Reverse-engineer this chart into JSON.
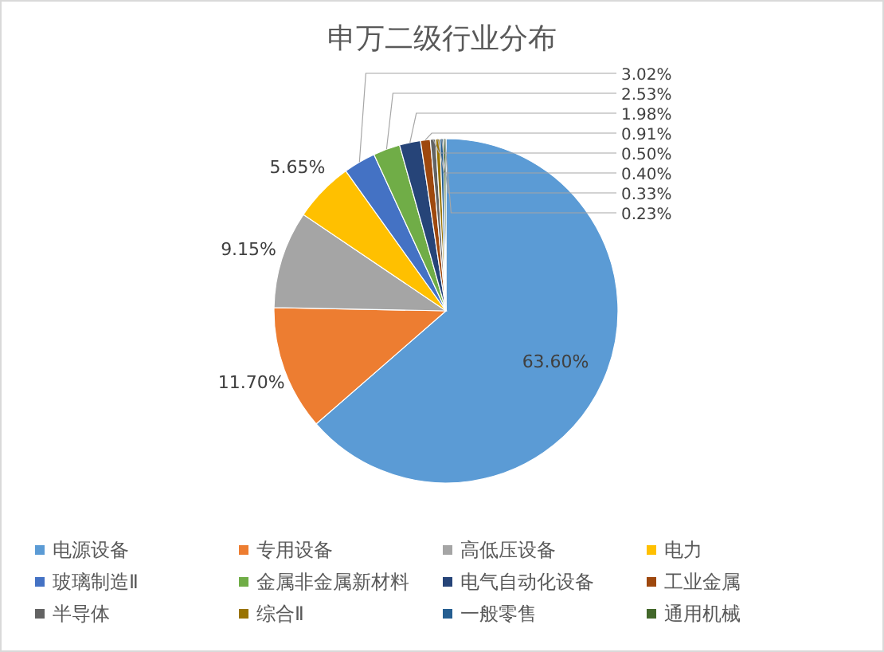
{
  "chart_data": {
    "type": "pie",
    "title": "申万二级行业分布",
    "categories": [
      "电源设备",
      "专用设备",
      "高低压设备",
      "电力",
      "玻璃制造Ⅱ",
      "金属非金属新材料",
      "电气自动化设备",
      "工业金属",
      "半导体",
      "综合Ⅱ",
      "一般零售",
      "通用机械"
    ],
    "values": [
      63.6,
      11.7,
      9.15,
      5.65,
      3.02,
      2.53,
      1.98,
      0.91,
      0.5,
      0.4,
      0.33,
      0.23
    ],
    "colors": [
      "#5b9bd5",
      "#ed7d31",
      "#a5a5a5",
      "#ffc000",
      "#4472c4",
      "#70ad47",
      "#264478",
      "#9e480e",
      "#636363",
      "#997300",
      "#255e91",
      "#43682b"
    ],
    "value_labels": [
      "63.60%",
      "11.70%",
      "9.15%",
      "5.65%",
      "3.02%",
      "2.53%",
      "1.98%",
      "0.91%",
      "0.50%",
      "0.40%",
      "0.33%",
      "0.23%"
    ],
    "legend": "bottom"
  }
}
